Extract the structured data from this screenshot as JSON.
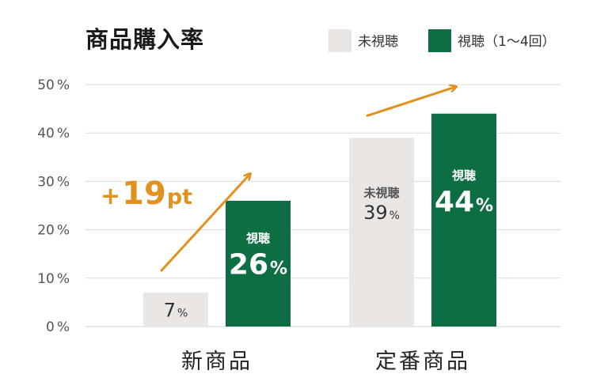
{
  "chart_data": {
    "type": "bar",
    "title": "商品購入率",
    "categories": [
      "新商品",
      "定番商品"
    ],
    "series": [
      {
        "name": "未視聴",
        "color": "#E9E6E3",
        "values": [
          7,
          39
        ],
        "value_labels": [
          "7",
          "39"
        ],
        "inner_labels": [
          "",
          "未視聴"
        ]
      },
      {
        "name": "視聴（1〜4回）",
        "color": "#0D6E43",
        "values": [
          26,
          44
        ],
        "value_labels": [
          "26",
          "44"
        ],
        "inner_labels": [
          "視聴",
          "視聴"
        ]
      }
    ],
    "value_unit": "%",
    "yticks": [
      "0",
      "10",
      "20",
      "30",
      "40",
      "50"
    ],
    "ylim": [
      0,
      50
    ],
    "grid": true,
    "legend_position": "top-right",
    "annotation": {
      "sign": "+",
      "value": "19",
      "unit": "pt",
      "color": "#E2911E"
    },
    "arrow_color": "#E2911E"
  }
}
